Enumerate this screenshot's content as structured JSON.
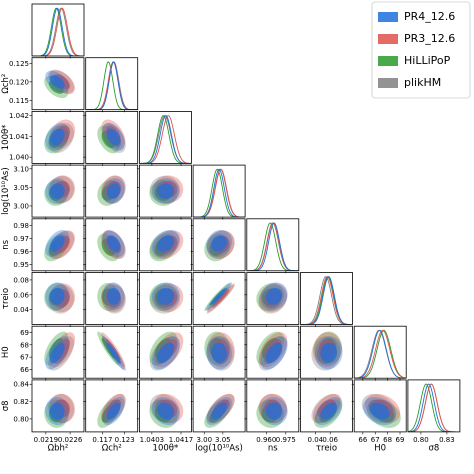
{
  "chart_data": {
    "type": "corner",
    "params": [
      {
        "label": "Ωbh²",
        "lim": [
          0.0215,
          0.023
        ],
        "xticks": [
          0.0219,
          0.0226
        ],
        "yticks": []
      },
      {
        "label": "Ωch²",
        "lim": [
          0.1125,
          0.1265
        ],
        "xticks": [
          0.117,
          0.123
        ],
        "yticks": [
          0.115,
          {
            "value": 0.12,
            "label": "0.120"
          },
          0.125
        ]
      },
      {
        "label": "100θ*",
        "lim": [
          1.0397,
          1.0422
        ],
        "xticks": [
          1.0403,
          1.0417
        ],
        "yticks": [
          {
            "value": 1.04,
            "label": "1.040"
          },
          1.041,
          1.042
        ]
      },
      {
        "label": "log(10¹⁰As)",
        "lim": [
          2.97,
          3.11
        ],
        "xticks": [
          {
            "value": 3,
            "label": "3.00"
          },
          3.05
        ],
        "yticks": [
          {
            "value": 3,
            "label": "3.00"
          },
          3.05,
          {
            "value": 3.1,
            "label": "3.10"
          }
        ]
      },
      {
        "label": "ns",
        "lim": [
          0.945,
          0.985
        ],
        "xticks": [
          {
            "value": 0.96,
            "label": "0.960"
          },
          0.975
        ],
        "yticks": [
          0.95,
          0.96,
          0.97,
          0.98
        ]
      },
      {
        "label": "τreio",
        "lim": [
          0.02,
          0.09
        ],
        "xticks": [
          0.04,
          0.06
        ],
        "yticks": [
          0.04,
          0.06,
          0.08
        ]
      },
      {
        "label": "H0",
        "lim": [
          65.3,
          69.5
        ],
        "xticks": [
          66,
          67,
          68,
          69
        ],
        "yticks": [
          66,
          67,
          68,
          69
        ]
      },
      {
        "label": "σ8",
        "lim": [
          0.785,
          0.845
        ],
        "xticks": [
          {
            "value": 0.8,
            "label": "0.80"
          },
          0.83
        ],
        "yticks": [
          {
            "value": 0.8,
            "label": "0.80"
          },
          0.82,
          0.84
        ]
      }
    ],
    "series": [
      {
        "name": "plikHM",
        "color": "#808080",
        "means": [
          0.02234,
          0.1201,
          1.04092,
          3.044,
          0.9649,
          0.054,
          67.3,
          0.812
        ],
        "sigmas": [
          0.00015,
          0.0013,
          0.00029,
          0.015,
          0.0044,
          0.0078,
          0.56,
          0.0068
        ]
      },
      {
        "name": "HiLLiPoP",
        "color": "#2a9a2a",
        "means": [
          0.0222,
          0.1186,
          1.04085,
          3.035,
          0.963,
          0.057,
          67.7,
          0.806
        ],
        "sigmas": [
          0.00014,
          0.0012,
          0.00027,
          0.014,
          0.0043,
          0.0076,
          0.55,
          0.0066
        ]
      },
      {
        "name": "PR3_12.6",
        "color": "#e0524a",
        "means": [
          0.02237,
          0.1199,
          1.04109,
          3.045,
          0.9652,
          0.056,
          67.6,
          0.812
        ],
        "sigmas": [
          0.00015,
          0.0013,
          0.00029,
          0.015,
          0.0044,
          0.0078,
          0.57,
          0.0068
        ]
      },
      {
        "name": "PR4_12.6",
        "color": "#1f6fdc",
        "means": [
          0.02223,
          0.12,
          1.04097,
          3.04,
          0.966,
          0.058,
          67.35,
          0.809
        ],
        "sigmas": [
          0.00014,
          0.0012,
          0.00027,
          0.014,
          0.0042,
          0.0075,
          0.54,
          0.0065
        ]
      }
    ],
    "legend_order": [
      3,
      2,
      1,
      0
    ],
    "legend": "upper right",
    "correlations": [
      [
        1,
        -0.5,
        0.3,
        0.05,
        0.45,
        0.05,
        0.6,
        -0.05
      ],
      [
        -0.5,
        1,
        -0.45,
        0.15,
        -0.4,
        -0.05,
        -0.92,
        0.55
      ],
      [
        0.3,
        -0.45,
        1,
        0,
        0.3,
        0.05,
        0.5,
        -0.2
      ],
      [
        0.05,
        0.15,
        0,
        1,
        0.15,
        0.95,
        -0.05,
        0.6
      ],
      [
        0.45,
        -0.4,
        0.3,
        0.15,
        1,
        0.15,
        0.5,
        -0.05
      ],
      [
        0.05,
        -0.05,
        0.05,
        0.95,
        0.15,
        1,
        0.05,
        0.5
      ],
      [
        0.6,
        -0.92,
        0.5,
        -0.05,
        0.5,
        0.05,
        1,
        -0.3
      ],
      [
        -0.05,
        0.55,
        -0.2,
        0.6,
        -0.05,
        0.5,
        -0.3,
        1
      ]
    ]
  }
}
